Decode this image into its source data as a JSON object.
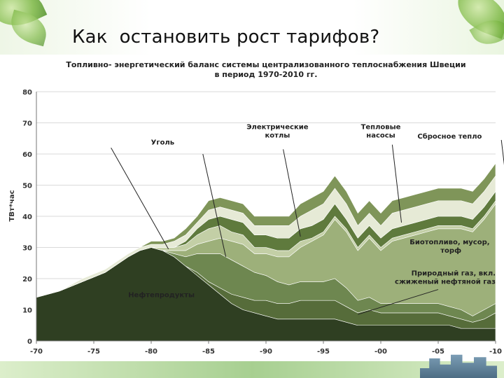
{
  "slide": {
    "title": "Как  остановить рост тарифов?"
  },
  "chart_data": {
    "type": "area",
    "title_lines": [
      "Топливно- энергетический баланс системы централизованного теплоснабжения Швеции",
      "в период 1970-2010 гг."
    ],
    "xlabel": "",
    "ylabel": "ТВт*час",
    "x_tick_labels": [
      "-70",
      "-75",
      "-80",
      "-85",
      "-90",
      "-95",
      "-00",
      "-05",
      "-10"
    ],
    "x_ticks": [
      1970,
      1975,
      1980,
      1985,
      1990,
      1995,
      2000,
      2005,
      2010
    ],
    "xlim": [
      1970,
      2010
    ],
    "ylim": [
      0,
      80
    ],
    "y_ticks": [
      0,
      10,
      20,
      30,
      40,
      50,
      60,
      70,
      80
    ],
    "grid": "horizontal",
    "stack_order": "bottom-to-top",
    "x": [
      1970,
      1972,
      1974,
      1976,
      1978,
      1979,
      1980,
      1981,
      1982,
      1983,
      1984,
      1985,
      1986,
      1987,
      1988,
      1989,
      1990,
      1991,
      1992,
      1993,
      1994,
      1995,
      1996,
      1997,
      1998,
      1999,
      2000,
      2001,
      2002,
      2003,
      2004,
      2005,
      2006,
      2007,
      2008,
      2009,
      2010
    ],
    "series": [
      {
        "name": "Нефтепродукты",
        "color": "#2f3f22",
        "values": [
          14,
          16,
          19,
          22,
          27,
          29,
          30,
          29,
          27,
          24,
          21,
          18,
          15,
          12,
          10,
          9,
          8,
          7,
          7,
          7,
          7,
          7,
          7,
          6,
          5,
          5,
          5,
          5,
          5,
          5,
          5,
          5,
          5,
          4,
          4,
          4,
          4
        ]
      },
      {
        "name": "Природный газ, вкл. сжиженый нефтяной газ",
        "color": "#566c3a",
        "values": [
          0,
          0,
          0,
          0,
          0,
          0,
          0,
          0,
          0,
          0,
          1,
          1,
          2,
          3,
          4,
          4,
          5,
          5,
          5,
          6,
          6,
          6,
          6,
          5,
          4,
          5,
          4,
          4,
          4,
          4,
          4,
          4,
          3,
          3,
          2,
          3,
          5
        ]
      },
      {
        "name": "Уголь",
        "color": "#6e8750",
        "values": [
          0,
          0,
          0,
          0,
          0,
          0,
          0,
          0,
          1,
          3,
          6,
          9,
          11,
          11,
          10,
          9,
          8,
          7,
          6,
          6,
          6,
          6,
          7,
          6,
          4,
          4,
          3,
          3,
          3,
          3,
          3,
          3,
          3,
          3,
          2,
          3,
          3
        ]
      },
      {
        "name": "Биотопливо, мусор,  торф",
        "color": "#9db07a",
        "values": [
          0,
          0,
          0,
          0,
          0,
          0,
          0,
          0,
          1,
          2,
          3,
          4,
          5,
          6,
          7,
          6,
          7,
          8,
          9,
          11,
          13,
          15,
          19,
          18,
          16,
          19,
          17,
          20,
          21,
          22,
          23,
          24,
          25,
          26,
          27,
          29,
          32
        ]
      },
      {
        "name": "Электрические котлы",
        "color": "#c3cfa6",
        "values": [
          0,
          0,
          0,
          0,
          0,
          0,
          0,
          1,
          1,
          2,
          3,
          4,
          4,
          3,
          3,
          2,
          2,
          2,
          2,
          2,
          1,
          1,
          1,
          1,
          1,
          1,
          1,
          1,
          1,
          1,
          1,
          1,
          1,
          1,
          1,
          1,
          1
        ]
      },
      {
        "name": "Тепловые насосы",
        "color": "#5f7a3d",
        "values": [
          0,
          0,
          0,
          0,
          0,
          0,
          0,
          0,
          0,
          1,
          2,
          3,
          3,
          4,
          4,
          4,
          4,
          4,
          4,
          4,
          4,
          4,
          4,
          3,
          3,
          3,
          3,
          3,
          3,
          3,
          3,
          3,
          3,
          3,
          3,
          3,
          3
        ]
      },
      {
        "name": "Сбросное тепло",
        "color": "#e6ead6",
        "values": [
          0,
          0,
          1,
          1,
          1,
          1,
          1,
          1,
          2,
          2,
          2,
          3,
          3,
          3,
          3,
          3,
          3,
          4,
          4,
          4,
          5,
          5,
          5,
          5,
          4,
          4,
          4,
          5,
          5,
          5,
          5,
          5,
          5,
          5,
          5,
          5,
          5
        ]
      },
      {
        "name": "",
        "color": "#7f9559",
        "values": [
          0,
          0,
          0,
          0,
          0,
          0,
          1,
          1,
          1,
          2,
          2,
          3,
          3,
          3,
          3,
          3,
          3,
          3,
          3,
          4,
          4,
          4,
          4,
          4,
          4,
          4,
          4,
          4,
          4,
          4,
          4,
          4,
          4,
          4,
          4,
          4,
          4
        ]
      }
    ],
    "annotations": [
      {
        "text": "Уголь",
        "x": 1981,
        "y": 63
      },
      {
        "text": "Электрические котлы",
        "x": 1991,
        "y": 68
      },
      {
        "text": "Тепловые насосы",
        "x": 2000,
        "y": 68
      },
      {
        "text": "Сбросное тепло",
        "x": 2006,
        "y": 65
      },
      {
        "text": "Биотопливо, мусор,  торф",
        "x": 2006,
        "y": 31
      },
      {
        "text": "Нефтепродукты",
        "x": 1978,
        "y": 14
      },
      {
        "text": "Природный газ, вкл. сжиженый нефтяной газ",
        "x": 2010,
        "y": 21
      }
    ]
  }
}
